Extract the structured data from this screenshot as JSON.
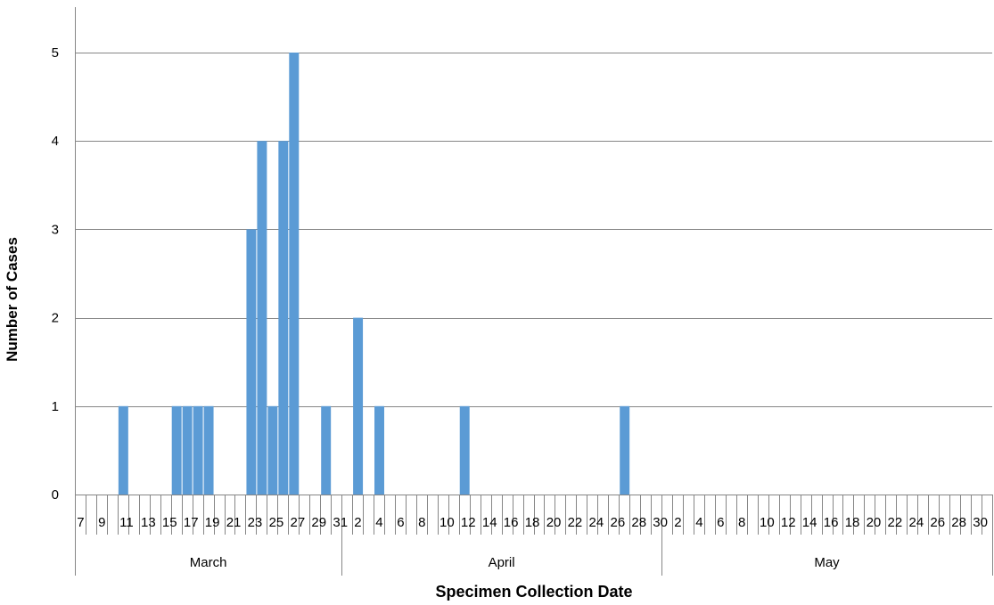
{
  "chart_data": {
    "type": "bar",
    "title": "",
    "xlabel": "Specimen Collection Date",
    "ylabel": "Number of Cases",
    "ylim": [
      0,
      5
    ],
    "yticks": [
      0,
      1,
      2,
      3,
      4,
      5
    ],
    "grid": true,
    "legend": "none",
    "bar_color": "#5b9bd5",
    "months": [
      {
        "name": "March",
        "first_day": 7,
        "last_day": 31
      },
      {
        "name": "April",
        "first_day": 1,
        "last_day": 30
      },
      {
        "name": "May",
        "first_day": 1,
        "last_day": 31
      }
    ],
    "day_labels": [
      [
        "7",
        "9",
        "11",
        "13",
        "15",
        "17",
        "19",
        "21",
        "23",
        "25",
        "27",
        "29",
        "31"
      ],
      [
        "2",
        "4",
        "6",
        "8",
        "10",
        "12",
        "14",
        "16",
        "18",
        "20",
        "22",
        "24",
        "26",
        "28",
        "30"
      ],
      [
        "2",
        "4",
        "6",
        "8",
        "10",
        "12",
        "14",
        "16",
        "18",
        "20",
        "22",
        "24",
        "26",
        "28",
        "30"
      ]
    ],
    "points": [
      {
        "date": "March 11",
        "value": 1
      },
      {
        "date": "March 16",
        "value": 1
      },
      {
        "date": "March 17",
        "value": 1
      },
      {
        "date": "March 18",
        "value": 1
      },
      {
        "date": "March 19",
        "value": 1
      },
      {
        "date": "March 23",
        "value": 3
      },
      {
        "date": "March 24",
        "value": 4
      },
      {
        "date": "March 25",
        "value": 1
      },
      {
        "date": "March 26",
        "value": 4
      },
      {
        "date": "March 27",
        "value": 5
      },
      {
        "date": "March 30",
        "value": 1
      },
      {
        "date": "April 2",
        "value": 2
      },
      {
        "date": "April 4",
        "value": 1
      },
      {
        "date": "April 12",
        "value": 1
      },
      {
        "date": "April 27",
        "value": 1
      }
    ]
  }
}
